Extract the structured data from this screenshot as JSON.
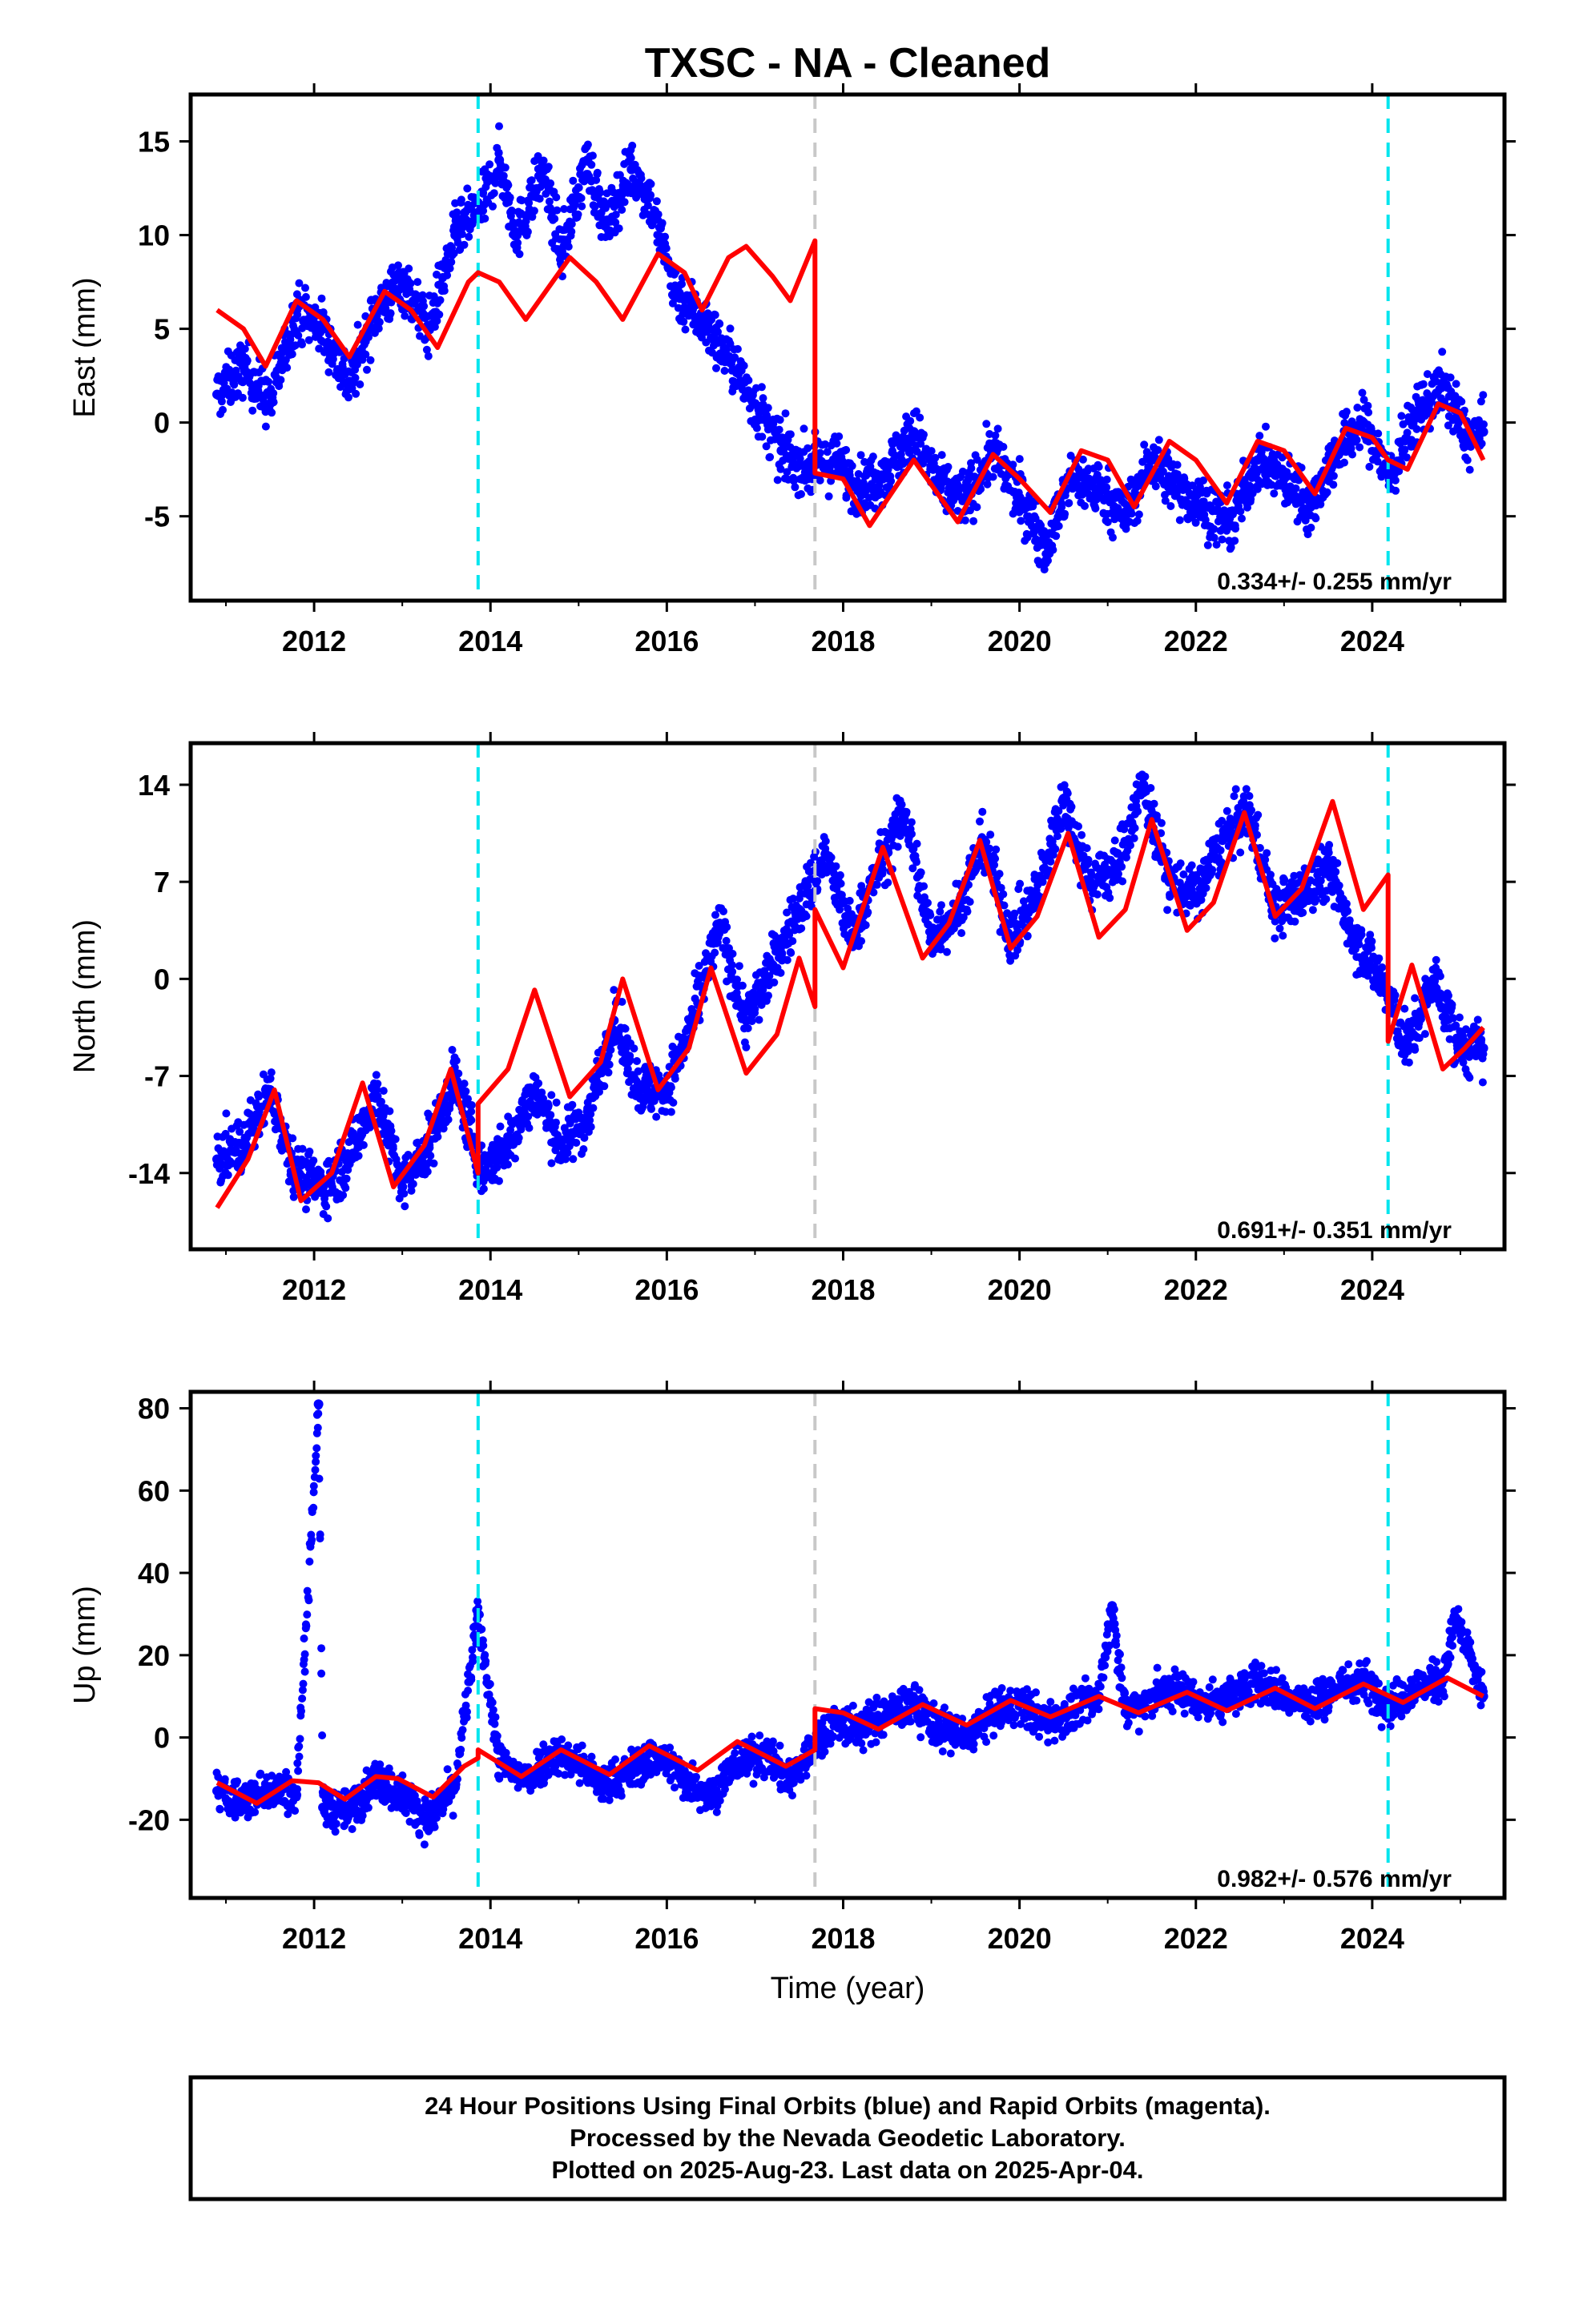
{
  "title": "TXSC  - NA - Cleaned",
  "xlabel": "Time (year)",
  "colors": {
    "points": "#0000ff",
    "model": "#ff0000",
    "cyan_line": "#00e5ee",
    "gray_line": "#c8c8c8"
  },
  "footer": {
    "line1": "24 Hour Positions Using Final Orbits (blue) and Rapid Orbits (magenta).",
    "line2": "Processed by the Nevada Geodetic Laboratory.",
    "line3": "Plotted on 2025-Aug-23. Last data on 2025-Apr-04."
  },
  "chart_data": [
    {
      "type": "scatter",
      "ylabel": "East (mm)",
      "rate_text": "0.334+/- 0.255 mm/yr",
      "xlim": [
        2010.6,
        2025.5
      ],
      "ylim": [
        -9.5,
        17.5
      ],
      "xticks": [
        "2012",
        "2014",
        "2016",
        "2018",
        "2020",
        "2022",
        "2024"
      ],
      "yticks": [
        "-5",
        "0",
        "5",
        "10",
        "15"
      ],
      "vlines": [
        {
          "x": 2013.86,
          "style": "cyan-dashed"
        },
        {
          "x": 2017.68,
          "style": "gray-dashed"
        },
        {
          "x": 2024.18,
          "style": "cyan-dashed"
        }
      ],
      "series": [
        {
          "kind": "points",
          "x": [
            2010.9,
            2011.2,
            2011.5,
            2011.8,
            2012.1,
            2012.4,
            2012.7,
            2013.0,
            2013.3,
            2013.6,
            2013.9,
            2014.1,
            2014.3,
            2014.6,
            2014.8,
            2015.1,
            2015.3,
            2015.6,
            2015.8,
            2016.1,
            2016.4,
            2016.7,
            2017.0,
            2017.3,
            2017.6,
            2017.9,
            2018.2,
            2018.5,
            2018.8,
            2019.1,
            2019.4,
            2019.7,
            2020.0,
            2020.3,
            2020.6,
            2020.9,
            2021.2,
            2021.5,
            2021.8,
            2022.1,
            2022.4,
            2022.7,
            2023.0,
            2023.3,
            2023.6,
            2023.9,
            2024.2,
            2024.5,
            2024.8,
            2025.1,
            2025.26
          ],
          "y": [
            1.5,
            3.0,
            1.0,
            6.0,
            5.0,
            2.0,
            6.0,
            7.5,
            5.0,
            10.0,
            11.5,
            14.0,
            10.0,
            13.5,
            9.0,
            14.0,
            10.5,
            13.5,
            12.0,
            7.0,
            5.5,
            3.5,
            1.0,
            -1.5,
            -2.5,
            -2.0,
            -3.5,
            -2.5,
            -0.5,
            -3.5,
            -4.0,
            -1.5,
            -4.0,
            -6.5,
            -3.0,
            -3.5,
            -5.0,
            -2.0,
            -3.5,
            -4.5,
            -5.5,
            -2.0,
            -3.0,
            -4.5,
            -1.5,
            0.0,
            -3.0,
            0.5,
            2.0,
            -1.0,
            -0.5
          ]
        },
        {
          "kind": "model",
          "x": [
            2010.9,
            2011.2,
            2011.45,
            2011.8,
            2012.1,
            2012.4,
            2012.8,
            2013.1,
            2013.4,
            2013.75,
            2013.86,
            2014.1,
            2014.4,
            2014.9,
            2015.2,
            2015.5,
            2015.9,
            2016.2,
            2016.4,
            2016.7,
            2016.9,
            2017.2,
            2017.4,
            2017.68,
            2017.68,
            2018.0,
            2018.3,
            2018.8,
            2019.3,
            2019.7,
            2020.0,
            2020.35,
            2020.7,
            2021.0,
            2021.3,
            2021.7,
            2022.0,
            2022.35,
            2022.7,
            2023.0,
            2023.35,
            2023.7,
            2024.0,
            2024.18,
            2024.4,
            2024.75,
            2025.0,
            2025.26
          ],
          "y": [
            6.0,
            5.0,
            3.0,
            6.5,
            5.5,
            3.5,
            7.0,
            6.0,
            4.0,
            7.5,
            8.0,
            7.5,
            5.5,
            8.8,
            7.5,
            5.5,
            9.0,
            8.0,
            6.0,
            8.8,
            9.4,
            7.8,
            6.5,
            9.7,
            -2.7,
            -3.0,
            -5.5,
            -2.0,
            -5.3,
            -1.7,
            -3.0,
            -4.8,
            -1.5,
            -2.0,
            -4.5,
            -1.0,
            -2.0,
            -4.3,
            -1.0,
            -1.5,
            -3.8,
            -0.3,
            -0.8,
            -2.0,
            -2.5,
            1.0,
            0.5,
            -2.0
          ]
        }
      ]
    },
    {
      "type": "scatter",
      "ylabel": "North (mm)",
      "rate_text": "0.691+/- 0.351 mm/yr",
      "xlim": [
        2010.6,
        2025.5
      ],
      "ylim": [
        -19.5,
        17.0
      ],
      "xticks": [
        "2012",
        "2014",
        "2016",
        "2018",
        "2020",
        "2022",
        "2024"
      ],
      "yticks": [
        "-14",
        "-7",
        "0",
        "7",
        "14"
      ],
      "vlines": [
        {
          "x": 2013.86,
          "style": "cyan-dashed"
        },
        {
          "x": 2017.68,
          "style": "gray-dashed"
        },
        {
          "x": 2024.18,
          "style": "cyan-dashed"
        }
      ],
      "series": [
        {
          "kind": "points",
          "x": [
            2010.9,
            2011.2,
            2011.5,
            2011.8,
            2012.1,
            2012.4,
            2012.7,
            2013.0,
            2013.3,
            2013.6,
            2013.9,
            2014.2,
            2014.5,
            2014.8,
            2015.1,
            2015.4,
            2015.7,
            2016.0,
            2016.3,
            2016.6,
            2016.9,
            2017.2,
            2017.5,
            2017.8,
            2018.1,
            2018.4,
            2018.7,
            2019.0,
            2019.3,
            2019.6,
            2019.9,
            2020.2,
            2020.5,
            2020.8,
            2021.1,
            2021.4,
            2021.7,
            2022.0,
            2022.3,
            2022.6,
            2022.9,
            2023.2,
            2023.5,
            2023.8,
            2024.1,
            2024.4,
            2024.7,
            2025.0,
            2025.26
          ],
          "y": [
            -13.0,
            -12.0,
            -8.0,
            -14.0,
            -15.0,
            -13.0,
            -8.0,
            -15.0,
            -12.0,
            -7.0,
            -14.0,
            -12.0,
            -8.0,
            -12.0,
            -10.0,
            -3.0,
            -8.0,
            -8.0,
            -3.0,
            4.0,
            -3.0,
            1.0,
            5.0,
            9.0,
            3.0,
            8.0,
            12.0,
            3.0,
            5.0,
            10.0,
            3.0,
            6.0,
            13.0,
            7.0,
            8.0,
            14.0,
            7.0,
            6.0,
            10.0,
            12.0,
            5.0,
            6.0,
            8.0,
            3.0,
            0.0,
            -5.0,
            0.0,
            -5.0,
            -5.0
          ]
        },
        {
          "kind": "model",
          "x": [
            2010.9,
            2011.25,
            2011.55,
            2011.85,
            2012.2,
            2012.55,
            2012.9,
            2013.25,
            2013.55,
            2013.86,
            2013.86,
            2014.2,
            2014.5,
            2014.9,
            2015.25,
            2015.5,
            2015.9,
            2016.25,
            2016.5,
            2016.9,
            2017.25,
            2017.5,
            2017.68,
            2017.68,
            2018.0,
            2018.45,
            2018.9,
            2019.2,
            2019.55,
            2019.9,
            2020.2,
            2020.55,
            2020.9,
            2021.2,
            2021.5,
            2021.9,
            2022.2,
            2022.55,
            2022.9,
            2023.2,
            2023.55,
            2023.9,
            2024.18,
            2024.18,
            2024.45,
            2024.8,
            2025.05,
            2025.26
          ],
          "y": [
            -16.5,
            -13.0,
            -8.0,
            -16.0,
            -14.0,
            -7.5,
            -15.0,
            -12.0,
            -6.5,
            -14.0,
            -9.0,
            -6.5,
            -0.8,
            -8.5,
            -6.0,
            0.0,
            -8.0,
            -5.0,
            0.8,
            -6.8,
            -4.0,
            1.5,
            -2.0,
            5.0,
            0.8,
            9.5,
            1.5,
            4.0,
            10.0,
            2.2,
            4.5,
            10.5,
            3.0,
            5.0,
            11.5,
            3.5,
            5.5,
            12.0,
            4.5,
            6.5,
            12.8,
            5.0,
            7.5,
            -4.5,
            1.0,
            -6.5,
            -5.0,
            -3.5
          ]
        }
      ]
    },
    {
      "type": "scatter",
      "ylabel": "Up (mm)",
      "rate_text": "0.982+/- 0.576 mm/yr",
      "xlim": [
        2010.6,
        2025.5
      ],
      "ylim": [
        -39.0,
        84.0
      ],
      "xticks": [
        "2012",
        "2014",
        "2016",
        "2018",
        "2020",
        "2022",
        "2024"
      ],
      "yticks": [
        "-20",
        "0",
        "20",
        "40",
        "60",
        "80"
      ],
      "vlines": [
        {
          "x": 2013.86,
          "style": "cyan-dashed"
        },
        {
          "x": 2017.68,
          "style": "gray-dashed"
        },
        {
          "x": 2024.18,
          "style": "cyan-dashed"
        }
      ],
      "series": [
        {
          "kind": "points",
          "x": [
            2010.9,
            2011.2,
            2011.5,
            2011.8,
            2012.05,
            2012.1,
            2012.4,
            2012.7,
            2013.0,
            2013.3,
            2013.6,
            2013.86,
            2014.1,
            2014.4,
            2014.7,
            2015.0,
            2015.3,
            2015.6,
            2015.9,
            2016.2,
            2016.5,
            2016.8,
            2017.1,
            2017.4,
            2017.9,
            2018.2,
            2018.5,
            2018.8,
            2019.1,
            2019.4,
            2019.7,
            2020.0,
            2020.3,
            2020.6,
            2020.9,
            2021.05,
            2021.2,
            2021.5,
            2021.8,
            2022.1,
            2022.4,
            2022.7,
            2023.0,
            2023.3,
            2023.6,
            2023.9,
            2024.2,
            2024.5,
            2024.8,
            2024.95,
            2025.26
          ],
          "y": [
            -13.0,
            -16.0,
            -12.0,
            -14.0,
            81.0,
            -17.0,
            -18.0,
            -10.0,
            -14.0,
            -20.0,
            -12.0,
            30.0,
            -6.0,
            -10.0,
            -4.0,
            -6.0,
            -12.0,
            -8.0,
            -4.0,
            -10.0,
            -14.0,
            -6.0,
            -4.0,
            -10.0,
            4.0,
            2.0,
            6.0,
            8.0,
            2.0,
            0.0,
            6.0,
            8.0,
            4.0,
            6.0,
            10.0,
            32.0,
            6.0,
            10.0,
            12.0,
            8.0,
            10.0,
            14.0,
            10.0,
            8.0,
            12.0,
            14.0,
            8.0,
            12.0,
            14.0,
            29.0,
            10.0
          ]
        },
        {
          "kind": "model",
          "x": [
            2010.9,
            2011.35,
            2011.75,
            2012.05,
            2012.35,
            2012.7,
            2012.95,
            2013.35,
            2013.7,
            2013.86,
            2013.86,
            2014.35,
            2014.8,
            2015.35,
            2015.8,
            2016.35,
            2016.8,
            2017.35,
            2017.68,
            2017.68,
            2018.0,
            2018.4,
            2018.9,
            2019.4,
            2019.9,
            2020.35,
            2020.9,
            2021.35,
            2021.9,
            2022.35,
            2022.9,
            2023.35,
            2023.9,
            2024.35,
            2024.85,
            2025.26
          ],
          "y": [
            -11.0,
            -16.0,
            -10.5,
            -11.0,
            -15.0,
            -9.5,
            -10.0,
            -14.5,
            -7.0,
            -5.0,
            -3.0,
            -9.5,
            -3.0,
            -9.0,
            -2.0,
            -8.0,
            -1.0,
            -7.0,
            -3.0,
            7.0,
            6.0,
            2.0,
            8.0,
            3.0,
            9.0,
            5.0,
            10.0,
            6.0,
            11.0,
            6.5,
            12.0,
            7.0,
            13.0,
            8.5,
            14.5,
            10.0
          ]
        }
      ]
    }
  ]
}
